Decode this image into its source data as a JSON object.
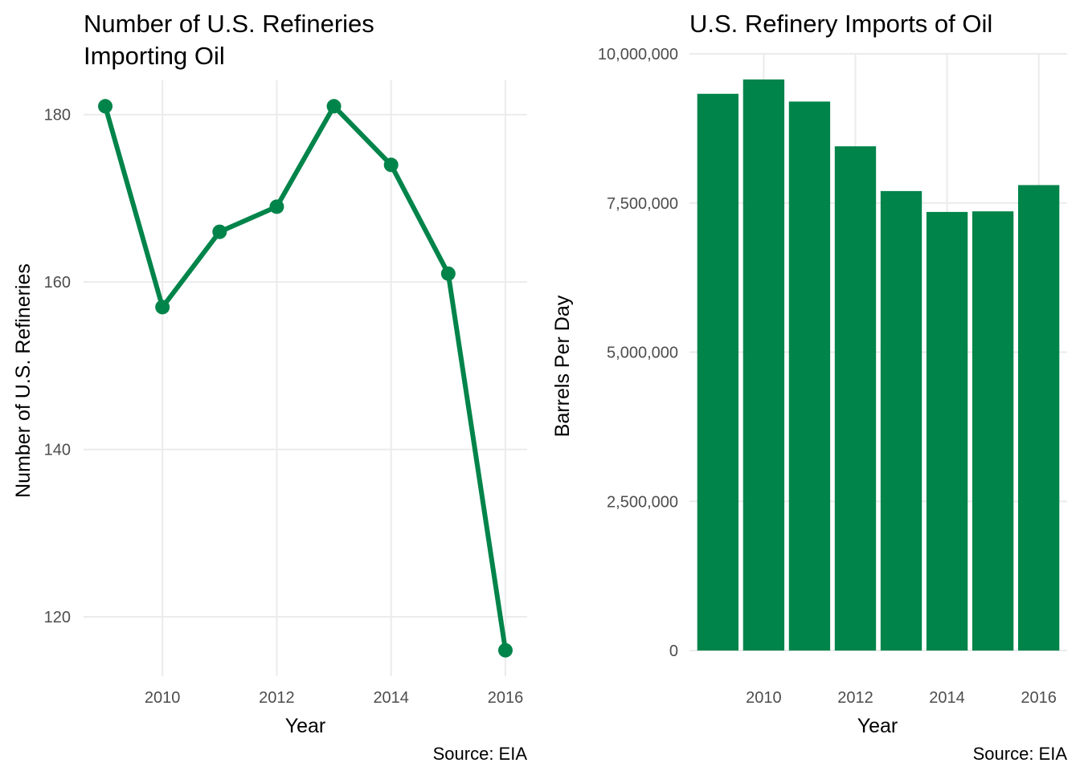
{
  "colors": {
    "accent": "#00844a",
    "grid": "#ebebeb",
    "tick_text": "#4d4d4d"
  },
  "chart_data": [
    {
      "type": "line",
      "title_line1": "Number of U.S. Refineries",
      "title_line2": "Importing Oil",
      "xlabel": "Year",
      "ylabel": "Number of U.S. Refineries",
      "caption": "Source: EIA",
      "x": [
        2009,
        2010,
        2011,
        2012,
        2013,
        2014,
        2015,
        2016
      ],
      "values": [
        181,
        157,
        166,
        169,
        181,
        174,
        161,
        116
      ],
      "xlim": [
        2008.62,
        2016.38
      ],
      "ylim": [
        112.9,
        184.1
      ],
      "x_ticks": [
        2010,
        2012,
        2014,
        2016
      ],
      "x_tick_labels": [
        "2010",
        "2012",
        "2014",
        "2016"
      ],
      "y_ticks": [
        120,
        140,
        160,
        180
      ],
      "y_tick_labels": [
        "120",
        "140",
        "160",
        "180"
      ],
      "grid": true,
      "markers": true
    },
    {
      "type": "bar",
      "title": "U.S. Refinery Imports of Oil",
      "xlabel": "Year",
      "ylabel": "Barrels Per Day",
      "caption": "Source: EIA",
      "x": [
        2009,
        2010,
        2011,
        2012,
        2013,
        2014,
        2015,
        2016
      ],
      "values": [
        9330000,
        9570000,
        9200000,
        8450000,
        7700000,
        7350000,
        7360000,
        7800000
      ],
      "xlim": [
        2008.38,
        2016.62
      ],
      "ylim": [
        0,
        10000000
      ],
      "x_ticks": [
        2010,
        2012,
        2014,
        2016
      ],
      "x_tick_labels": [
        "2010",
        "2012",
        "2014",
        "2016"
      ],
      "y_ticks": [
        0,
        2500000,
        5000000,
        7500000,
        10000000
      ],
      "y_tick_labels": [
        "0",
        "2,500,000",
        "5,000,000",
        "7,500,000",
        "10,000,000"
      ],
      "grid": true
    }
  ]
}
